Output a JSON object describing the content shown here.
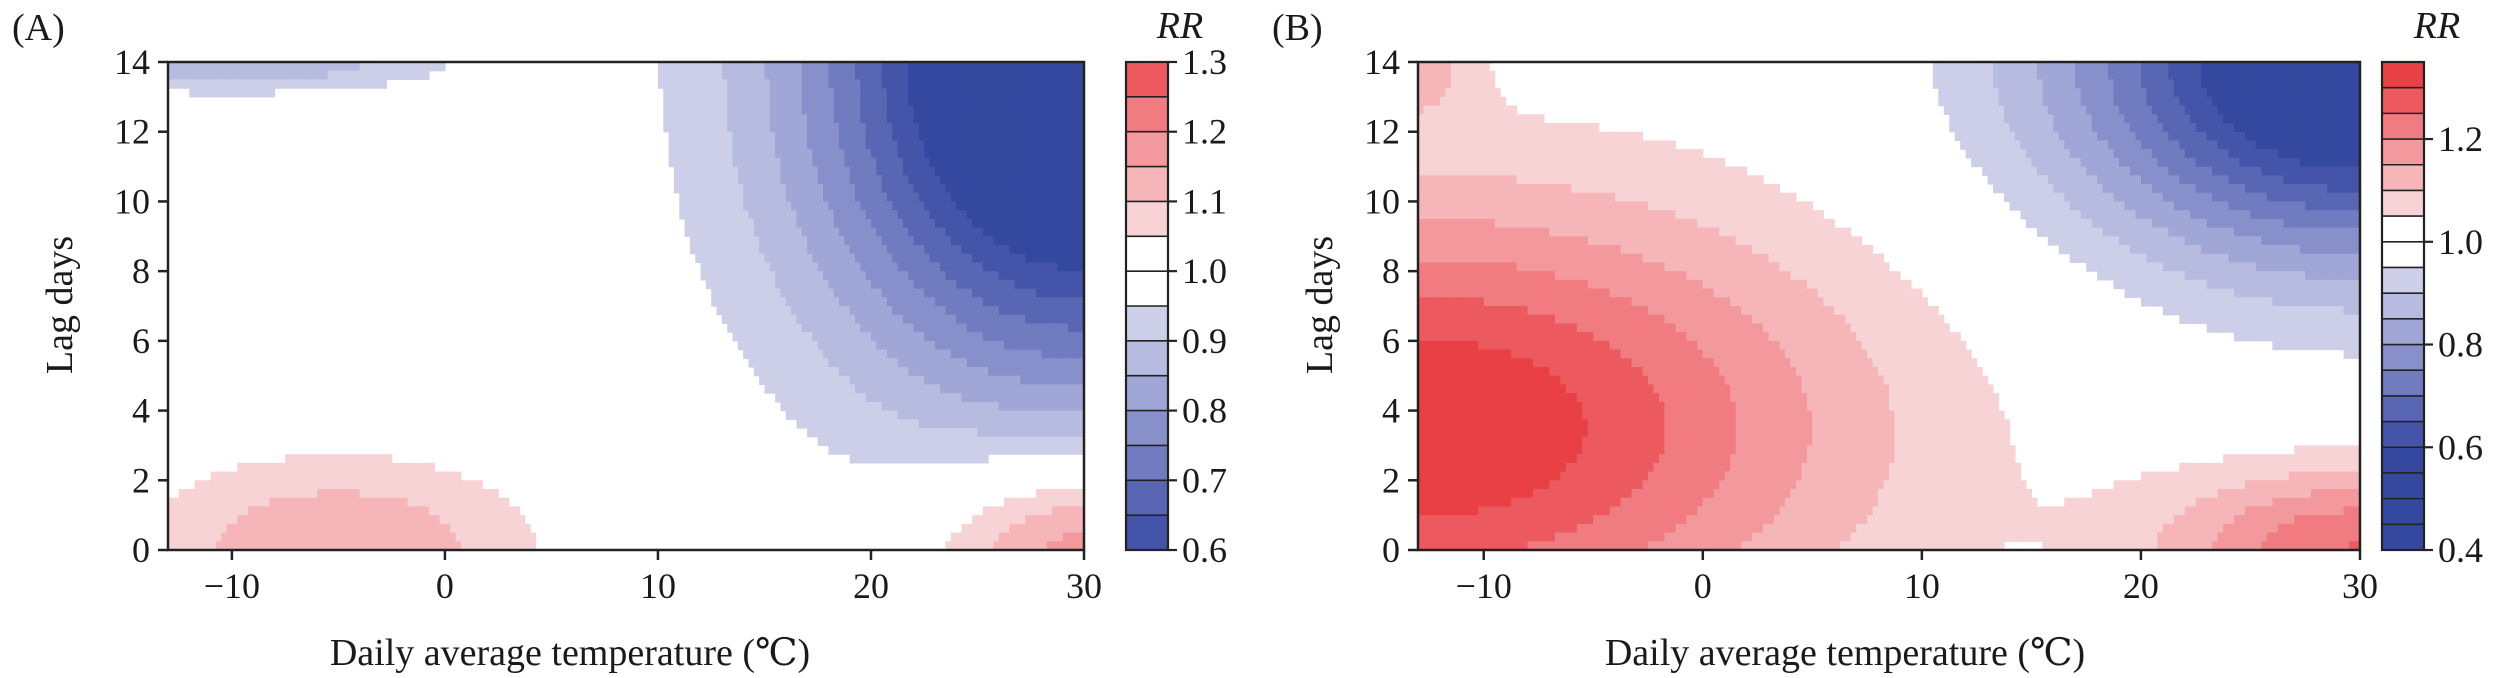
{
  "colors": {
    "red_scale": [
      "#f8d3d5",
      "#f6b6b9",
      "#f3999d",
      "#f07b80",
      "#ec5a60",
      "#e94046"
    ],
    "blue_scale": [
      "#cdcfe9",
      "#b7bbe0",
      "#a0a6d6",
      "#8890cb",
      "#707bc0",
      "#5866b3",
      "#4454a8",
      "#35489f"
    ]
  },
  "chart_data": [
    {
      "type": "heatmap",
      "panel_label": "(A)",
      "xlabel": "Daily average temperature (℃)",
      "ylabel": "Lag days",
      "xlim": [
        -13,
        30
      ],
      "ylim": [
        0,
        14
      ],
      "x_ticks": [
        -10,
        0,
        10,
        20,
        30
      ],
      "x_tick_labels": [
        "−10",
        "0",
        "10",
        "20",
        "30"
      ],
      "y_ticks": [
        0,
        2,
        4,
        6,
        8,
        10,
        12,
        14
      ],
      "y_tick_labels": [
        "0",
        "2",
        "4",
        "6",
        "8",
        "10",
        "12",
        "14"
      ],
      "colorbar": {
        "title": "RR",
        "min": 0.6,
        "max": 1.3,
        "step": 0.05,
        "ticks": [
          0.6,
          0.7,
          0.8,
          0.9,
          1.0,
          1.1,
          1.2,
          1.3
        ],
        "tick_labels": [
          "0.6",
          "0.7",
          "0.8",
          "0.9",
          "1.0",
          "1.1",
          "1.2",
          "1.3"
        ]
      },
      "features": [
        {
          "kind": "cold_low_lag",
          "x": -5,
          "y": 0,
          "rx": 9,
          "ry": 2.6,
          "amp": 0.15
        },
        {
          "kind": "cold_high_lag",
          "x": -10,
          "y": 14,
          "rx": 9.5,
          "ry": 0.85,
          "amp": -0.15
        },
        {
          "kind": "hot_long_lag",
          "x": 30,
          "y": 14,
          "rx": 12.5,
          "ry": 9,
          "amp": -0.62
        },
        {
          "kind": "hot_short_lag",
          "x": 30,
          "y": 0,
          "rx": 7,
          "ry": 2.8,
          "amp": 0.22
        }
      ]
    },
    {
      "type": "heatmap",
      "panel_label": "(B)",
      "xlabel": "Daily average temperature (℃)",
      "ylabel": "Lag days",
      "xlim": [
        -13,
        30
      ],
      "ylim": [
        0,
        14
      ],
      "x_ticks": [
        -10,
        0,
        10,
        20,
        30
      ],
      "x_tick_labels": [
        "−10",
        "0",
        "10",
        "20",
        "30"
      ],
      "y_ticks": [
        0,
        2,
        4,
        6,
        8,
        10,
        12,
        14
      ],
      "y_tick_labels": [
        "0",
        "2",
        "4",
        "6",
        "8",
        "10",
        "12",
        "14"
      ],
      "colorbar": {
        "title": "RR",
        "min": 0.4,
        "max": 1.35,
        "step": 0.05,
        "ticks": [
          0.4,
          0.6,
          0.8,
          1.0,
          1.2
        ],
        "tick_labels": [
          "0.4",
          "0.6",
          "0.8",
          "1.0",
          "1.2"
        ]
      },
      "features": [
        {
          "kind": "cold_lag_bump",
          "x": -13,
          "y": 3.5,
          "rx": 19.5,
          "ry": 6.5,
          "amp": 0.35
        },
        {
          "kind": "cold_high_lag",
          "x": -13,
          "y": 14,
          "rx": 2.8,
          "ry": 1.7,
          "amp": 0.1
        },
        {
          "kind": "hot_long_lag",
          "x": 30,
          "y": 14,
          "rx": 13,
          "ry": 5.5,
          "amp": -0.55
        },
        {
          "kind": "hot_short_lag",
          "x": 30,
          "y": 0,
          "rx": 9,
          "ry": 2.4,
          "amp": 0.25
        }
      ]
    }
  ]
}
